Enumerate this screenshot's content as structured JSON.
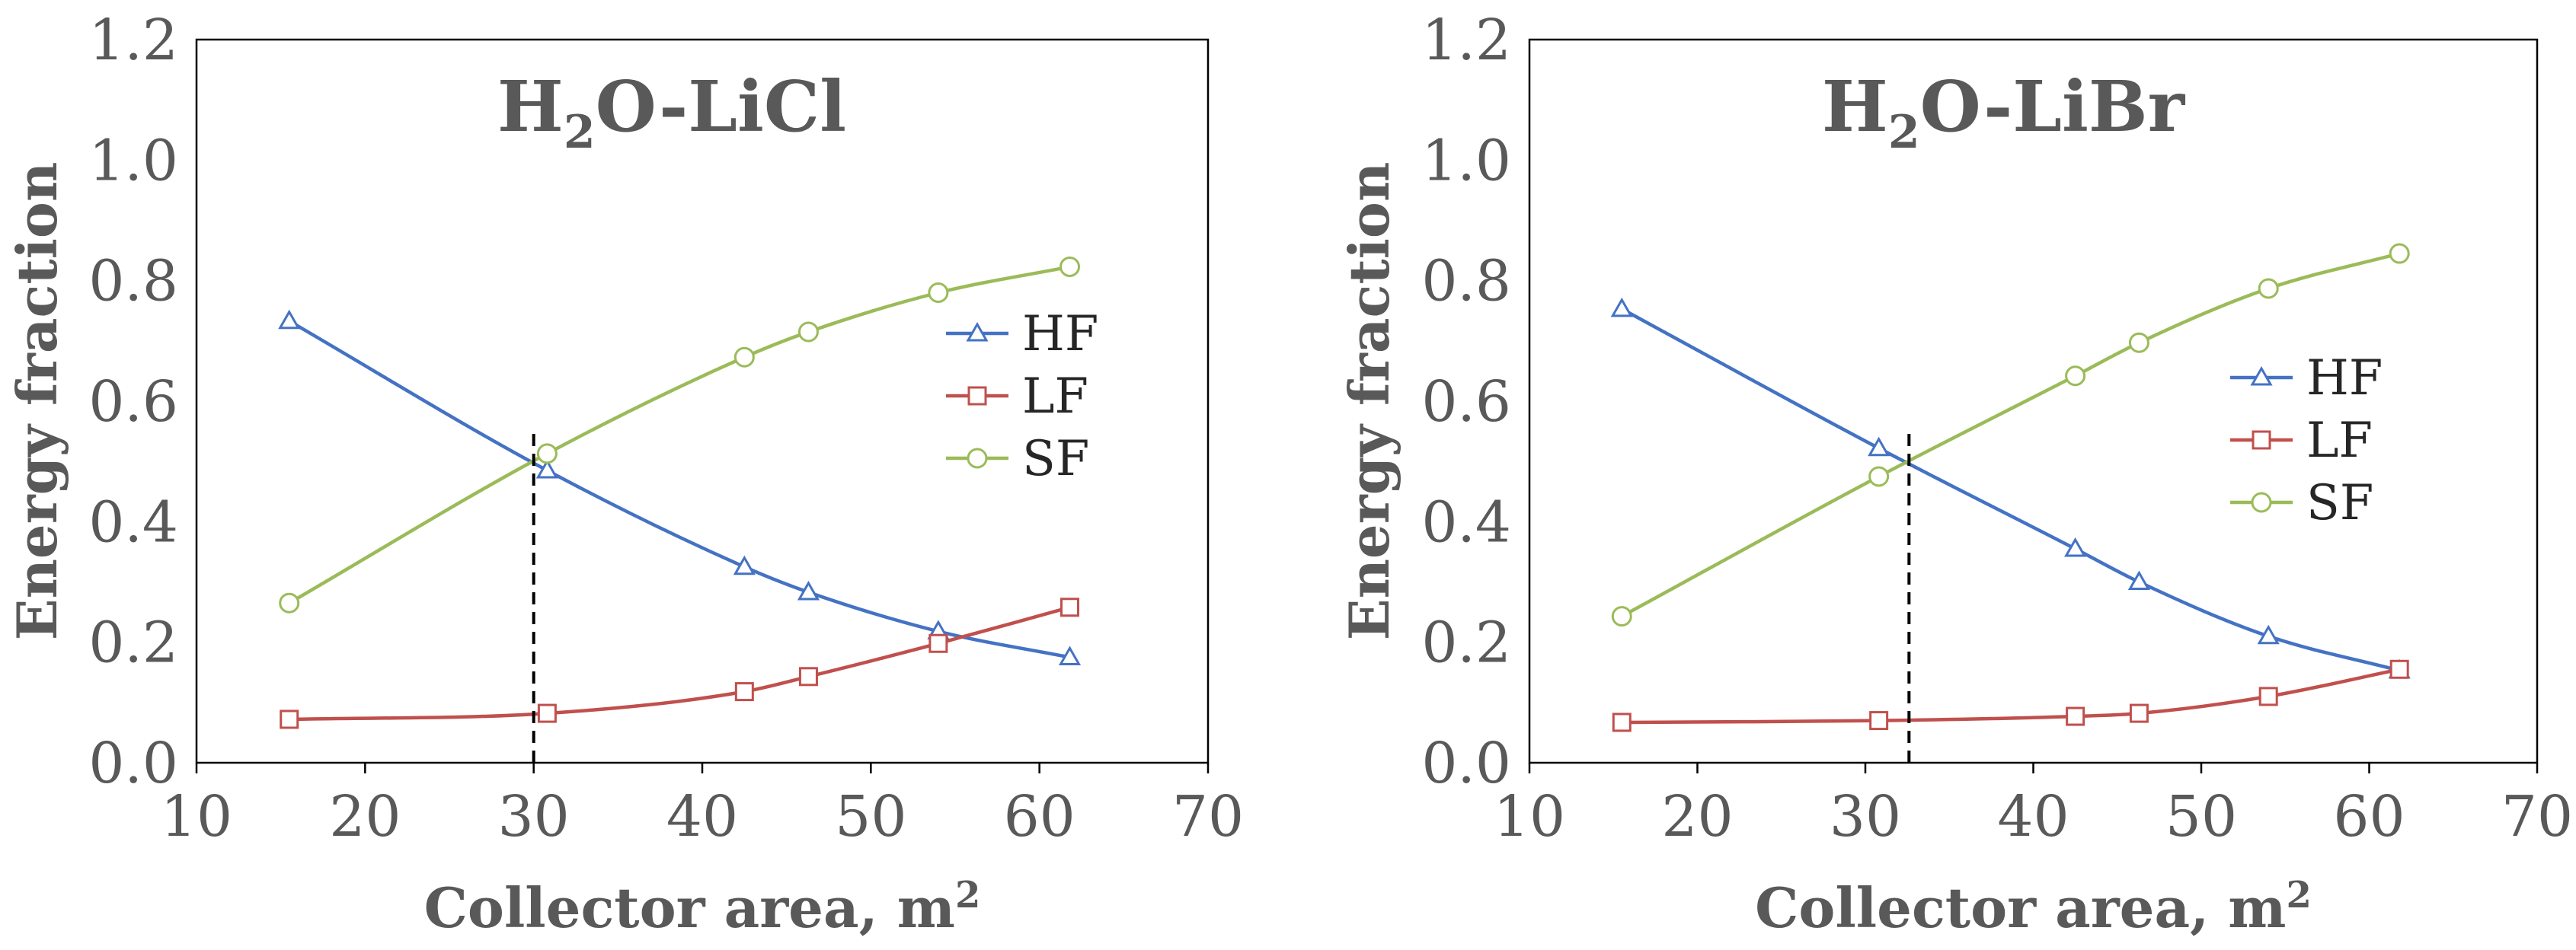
{
  "chart_data": [
    {
      "type": "line",
      "title": {
        "main": "H",
        "sub": "2",
        "rest": "O-LiCl"
      },
      "xlabel": {
        "main": "Collector area, m",
        "sup": "2"
      },
      "ylabel": "Energy fraction",
      "xlim": [
        10,
        70
      ],
      "ylim": [
        0,
        1.2
      ],
      "xticks": [
        "10",
        "20",
        "30",
        "40",
        "50",
        "60",
        "70"
      ],
      "yticks": [
        "0.0",
        "0.2",
        "0.4",
        "0.6",
        "0.8",
        "1.0",
        "1.2"
      ],
      "marker_line_x": 30,
      "series": [
        {
          "name": "HF",
          "color": "#4472C4",
          "marker": "triangle",
          "x": [
            15.5,
            30.8,
            42.5,
            46.3,
            54.0,
            61.8
          ],
          "y": [
            0.733,
            0.485,
            0.325,
            0.283,
            0.218,
            0.175
          ]
        },
        {
          "name": "LF",
          "color": "#C0504D",
          "marker": "square",
          "x": [
            15.5,
            30.8,
            42.5,
            46.3,
            54.0,
            61.8
          ],
          "y": [
            0.072,
            0.082,
            0.118,
            0.143,
            0.198,
            0.258
          ]
        },
        {
          "name": "SF",
          "color": "#9BBB59",
          "marker": "circle",
          "x": [
            15.5,
            30.8,
            42.5,
            46.3,
            54.0,
            61.8
          ],
          "y": [
            0.265,
            0.513,
            0.673,
            0.715,
            0.78,
            0.823
          ]
        }
      ]
    },
    {
      "type": "line",
      "title": {
        "main": "H",
        "sub": "2",
        "rest": "O-LiBr"
      },
      "xlabel": {
        "main": "Collector area, m",
        "sup": "2"
      },
      "ylabel": "Energy fraction",
      "xlim": [
        10,
        70
      ],
      "ylim": [
        0,
        1.2
      ],
      "xticks": [
        "10",
        "20",
        "30",
        "40",
        "50",
        "60",
        "70"
      ],
      "yticks": [
        "0.0",
        "0.2",
        "0.4",
        "0.6",
        "0.8",
        "1.0",
        "1.2"
      ],
      "marker_line_x": 32.6,
      "series": [
        {
          "name": "HF",
          "color": "#4472C4",
          "marker": "triangle",
          "x": [
            15.5,
            30.8,
            42.5,
            46.3,
            54.0,
            61.8
          ],
          "y": [
            0.753,
            0.522,
            0.355,
            0.3,
            0.21,
            0.153
          ]
        },
        {
          "name": "LF",
          "color": "#C0504D",
          "marker": "square",
          "x": [
            15.5,
            30.8,
            42.5,
            46.3,
            54.0,
            61.8
          ],
          "y": [
            0.067,
            0.07,
            0.077,
            0.082,
            0.11,
            0.155
          ]
        },
        {
          "name": "SF",
          "color": "#9BBB59",
          "marker": "circle",
          "x": [
            15.5,
            30.8,
            42.5,
            46.3,
            54.0,
            61.8
          ],
          "y": [
            0.243,
            0.475,
            0.642,
            0.697,
            0.787,
            0.845
          ]
        }
      ]
    }
  ]
}
